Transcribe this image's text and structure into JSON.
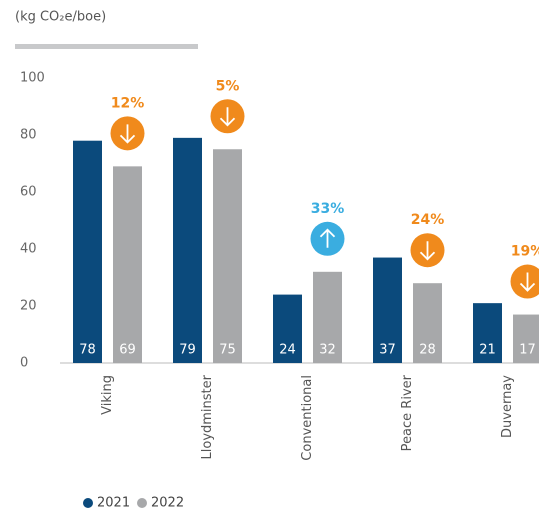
{
  "chart_data": {
    "type": "bar",
    "title": "(kg CO₂e/boe)",
    "categories": [
      "Viking",
      "Lloydminster",
      "Conventional",
      "Peace River",
      "Duvernay"
    ],
    "series": [
      {
        "name": "2021",
        "color": "#0b4a7c",
        "values": [
          78,
          79,
          24,
          37,
          21
        ]
      },
      {
        "name": "2022",
        "color": "#a7a8aa",
        "values": [
          69,
          75,
          32,
          28,
          17
        ]
      }
    ],
    "ylim": [
      0,
      100
    ],
    "yticks": [
      0,
      20,
      40,
      60,
      80,
      100
    ],
    "annotations": [
      {
        "label": "12%",
        "direction": "down",
        "color": "#f08a1c"
      },
      {
        "label": "5%",
        "direction": "down",
        "color": "#f08a1c"
      },
      {
        "label": "33%",
        "direction": "up",
        "color": "#3aade0"
      },
      {
        "label": "24%",
        "direction": "down",
        "color": "#f08a1c"
      },
      {
        "label": "19%",
        "direction": "down",
        "color": "#f08a1c"
      }
    ],
    "legend": "bottom"
  }
}
